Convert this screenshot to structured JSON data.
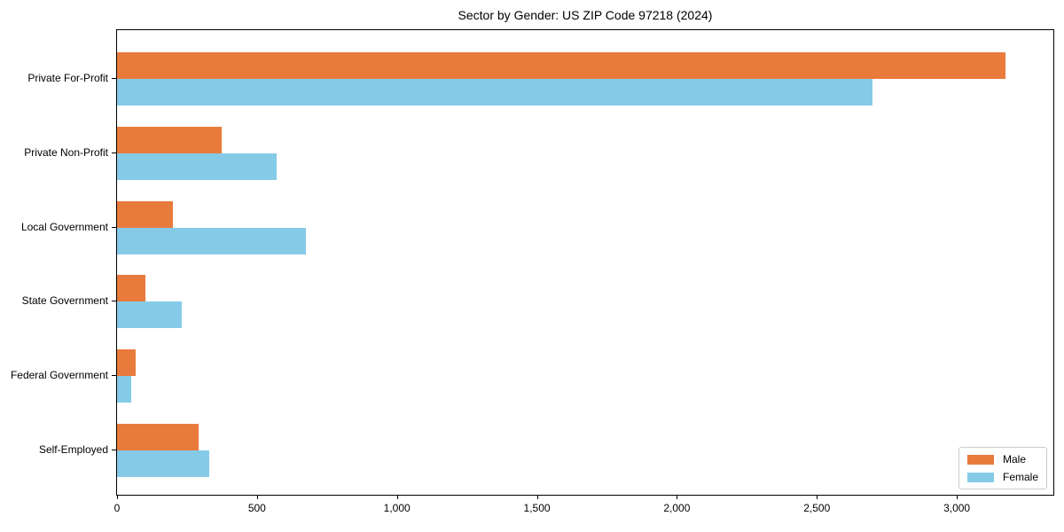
{
  "figure": {
    "background_color": "#ffffff",
    "frame_color": "#000000"
  },
  "chart_data": {
    "type": "bar",
    "orientation": "horizontal",
    "title": "Sector by Gender: US ZIP Code 97218 (2024)",
    "categories": [
      "Private For-Profit",
      "Private Non-Profit",
      "Local Government",
      "State Government",
      "Federal Government",
      "Self-Employed"
    ],
    "series": [
      {
        "name": "Male",
        "color": "#e87b3c",
        "values": [
          3175,
          375,
          200,
          100,
          65,
          290
        ]
      },
      {
        "name": "Female",
        "color": "#85cbe8",
        "values": [
          2700,
          570,
          675,
          230,
          50,
          330
        ]
      }
    ],
    "xlabel": "",
    "ylabel": "",
    "xlim": [
      0,
      3345
    ],
    "xticks": [
      0,
      500,
      1000,
      1500,
      2000,
      2500,
      3000
    ],
    "xtick_labels": [
      "0",
      "500",
      "1,000",
      "1,500",
      "2,000",
      "2,500",
      "3,000"
    ],
    "grid": false,
    "legend": {
      "location": "lower right"
    }
  }
}
